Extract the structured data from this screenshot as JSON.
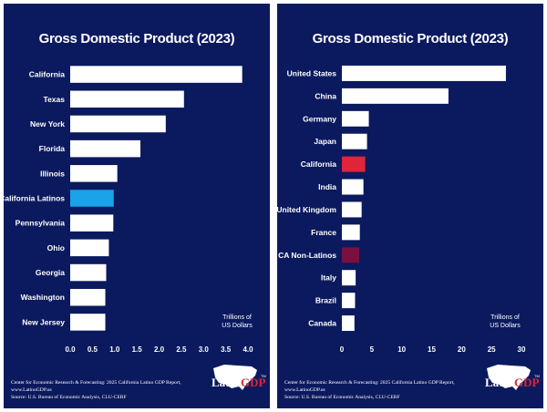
{
  "footer": {
    "line1": "Center for Economic Research & Forecasting: 2025 California Latino GDP Report, www.LatinoGDP.us",
    "line2": "Source: U.S. Bureau of Economic Analysis, CLU-CERF"
  },
  "logo": {
    "text_a": "Latino",
    "text_b": "GDP",
    "tm": "TM"
  },
  "chart_data": [
    {
      "type": "bar",
      "orientation": "horizontal",
      "title": "Gross Domestic Product (2023)",
      "units_label": [
        "Trillions of",
        "US Dollars"
      ],
      "categories": [
        "California",
        "Texas",
        "New York",
        "Florida",
        "Illinois",
        "California Latinos",
        "Pennsylvania",
        "Ohio",
        "Georgia",
        "Washington",
        "New Jersey"
      ],
      "values": [
        3.87,
        2.56,
        2.15,
        1.58,
        1.06,
        0.98,
        0.97,
        0.87,
        0.81,
        0.79,
        0.79
      ],
      "highlight": {
        "California Latinos": "#1aa3e8"
      },
      "bar_color": "#ffffff",
      "xlim": [
        0,
        4.0
      ],
      "xticks": [
        "0.0",
        "0.5",
        "1.0",
        "1.5",
        "2.0",
        "2.5",
        "3.0",
        "3.5",
        "4.0"
      ],
      "grid": false
    },
    {
      "type": "bar",
      "orientation": "horizontal",
      "title": "Gross Domestic Product (2023)",
      "units_label": [
        "Trillions of",
        "US Dollars"
      ],
      "categories": [
        "United States",
        "China",
        "Germany",
        "Japan",
        "California",
        "India",
        "United Kingdom",
        "France",
        "CA Non-Latinos",
        "Italy",
        "Brazil",
        "Canada"
      ],
      "values": [
        27.4,
        17.8,
        4.5,
        4.2,
        3.9,
        3.6,
        3.3,
        3.0,
        2.9,
        2.3,
        2.2,
        2.1
      ],
      "highlight": {
        "California": "#e0243a",
        "CA Non-Latinos": "#7a1040"
      },
      "bar_color": "#ffffff",
      "xlim": [
        0,
        30
      ],
      "xticks": [
        "0",
        "5",
        "10",
        "15",
        "20",
        "25",
        "30"
      ],
      "grid": false
    }
  ]
}
